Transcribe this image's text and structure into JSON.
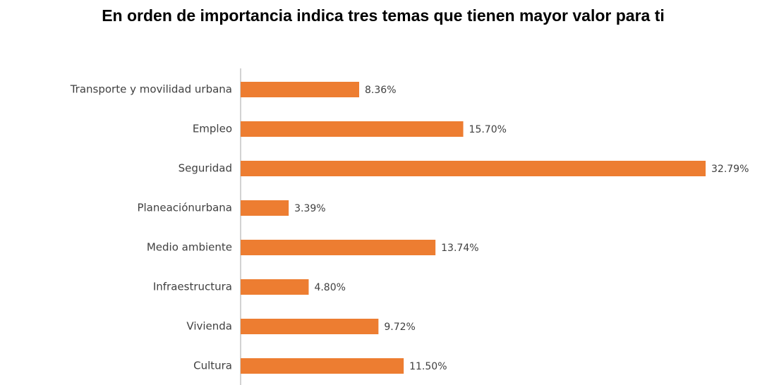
{
  "chart_data": {
    "type": "bar",
    "orientation": "horizontal",
    "title": "En orden de importancia indica tres temas que tienen mayor valor para ti",
    "categories": [
      "Transporte y movilidad urbana",
      "Empleo",
      "Seguridad",
      "Planeaciónurbana",
      "Medio ambiente",
      "Infraestructura",
      "Vivienda",
      "Cultura"
    ],
    "values": [
      8.36,
      15.7,
      32.79,
      3.39,
      13.74,
      4.8,
      9.72,
      11.5
    ],
    "value_labels": [
      "8.36%",
      "15.70%",
      "32.79%",
      "3.39%",
      "13.74%",
      "4.80%",
      "9.72%",
      "11.50%"
    ],
    "color": "#ed7d31"
  }
}
